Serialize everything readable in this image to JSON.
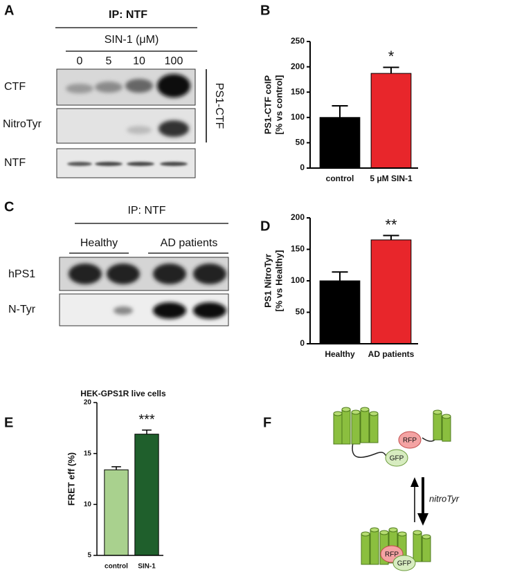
{
  "panel_labels": [
    "A",
    "B",
    "C",
    "D",
    "E",
    "F"
  ],
  "blot_a": {
    "header": "IP: NTF",
    "treatment": "SIN-1 (μM)",
    "lanes": [
      "0",
      "5",
      "10",
      "100"
    ],
    "rows": [
      "CTF",
      "NitroTyr",
      "NTF"
    ],
    "bracket": "PS1-CTF"
  },
  "blot_c": {
    "header": "IP: NTF",
    "groups": [
      "Healthy",
      "AD patients"
    ],
    "rows": [
      "hPS1",
      "N-Tyr"
    ]
  },
  "diagram_f": {
    "top_rfp": "RFP",
    "top_gfp": "GFP",
    "arrow_label": "nitroTyr",
    "bottom_rfp": "RFP",
    "bottom_gfp": "GFP"
  },
  "chart_data": [
    {
      "type": "bar",
      "ylabel": [
        "PS1-CTF coIP",
        "[% vs control]"
      ],
      "categories": [
        "control",
        "5 μM SIN-1"
      ],
      "values": [
        100,
        187
      ],
      "errors": [
        23,
        12
      ],
      "colors": [
        "#000000",
        "#e8262b"
      ],
      "ylim": [
        0,
        250
      ],
      "yticks": [
        0,
        50,
        100,
        150,
        200,
        250
      ],
      "significance": "*"
    },
    {
      "type": "bar",
      "ylabel": [
        "PS1 NitroTyr",
        "[% vs Healthy]"
      ],
      "categories": [
        "Healthy",
        "AD patients"
      ],
      "values": [
        100,
        165
      ],
      "errors": [
        14,
        7
      ],
      "colors": [
        "#000000",
        "#e8262b"
      ],
      "ylim": [
        0,
        200
      ],
      "yticks": [
        0,
        50,
        100,
        150,
        200
      ],
      "significance": "**"
    },
    {
      "type": "bar",
      "title": "HEK-GPS1R live cells",
      "ylabel": [
        "FRET eff  (%)"
      ],
      "categories": [
        "control",
        "SIN-1"
      ],
      "values": [
        13.4,
        16.9
      ],
      "errors": [
        0.3,
        0.4
      ],
      "colors": [
        "#a9d18e",
        "#1f5f2c"
      ],
      "ylim": [
        5,
        20
      ],
      "yticks": [
        5,
        10,
        15,
        20
      ],
      "significance": "***"
    }
  ]
}
